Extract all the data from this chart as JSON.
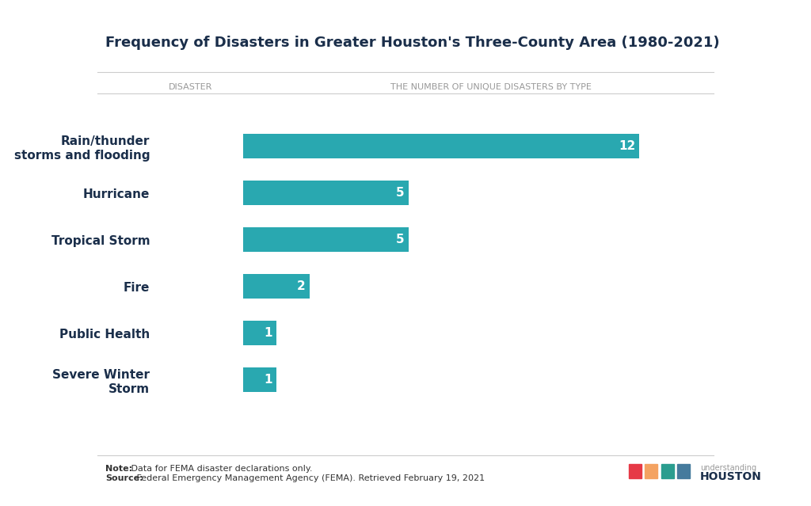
{
  "title": "Frequency of Disasters in Greater Houston's Three-County Area (1980-2021)",
  "col1_header": "DISASTER",
  "col2_header": "THE NUMBER OF UNIQUE DISASTERS BY TYPE",
  "categories": [
    "Rain/thunder\nstorms and flooding",
    "Hurricane",
    "Tropical Storm",
    "Fire",
    "Public Health",
    "Severe Winter\nStorm"
  ],
  "values": [
    12,
    5,
    5,
    2,
    1,
    1
  ],
  "bar_color": "#29a8b0",
  "bar_label_color": "#ffffff",
  "title_color": "#1a2e4a",
  "label_color": "#1a2e4a",
  "header_color": "#999999",
  "background_color": "#ffffff",
  "note_bold": "Note:",
  "note_rest": " Data for FEMA disaster declarations only.",
  "source_bold": "Source:",
  "source_rest": " Federal Emergency Management Agency (FEMA). Retrieved February 19, 2021",
  "title_fontsize": 13,
  "label_fontsize": 11,
  "header_fontsize": 8,
  "note_fontsize": 8,
  "bar_label_fontsize": 11,
  "xlim": [
    0,
    14
  ],
  "divider_color": "#cccccc",
  "logo_colors": [
    "#e63946",
    "#f4a261",
    "#2a9d8f",
    "#457b9d"
  ]
}
